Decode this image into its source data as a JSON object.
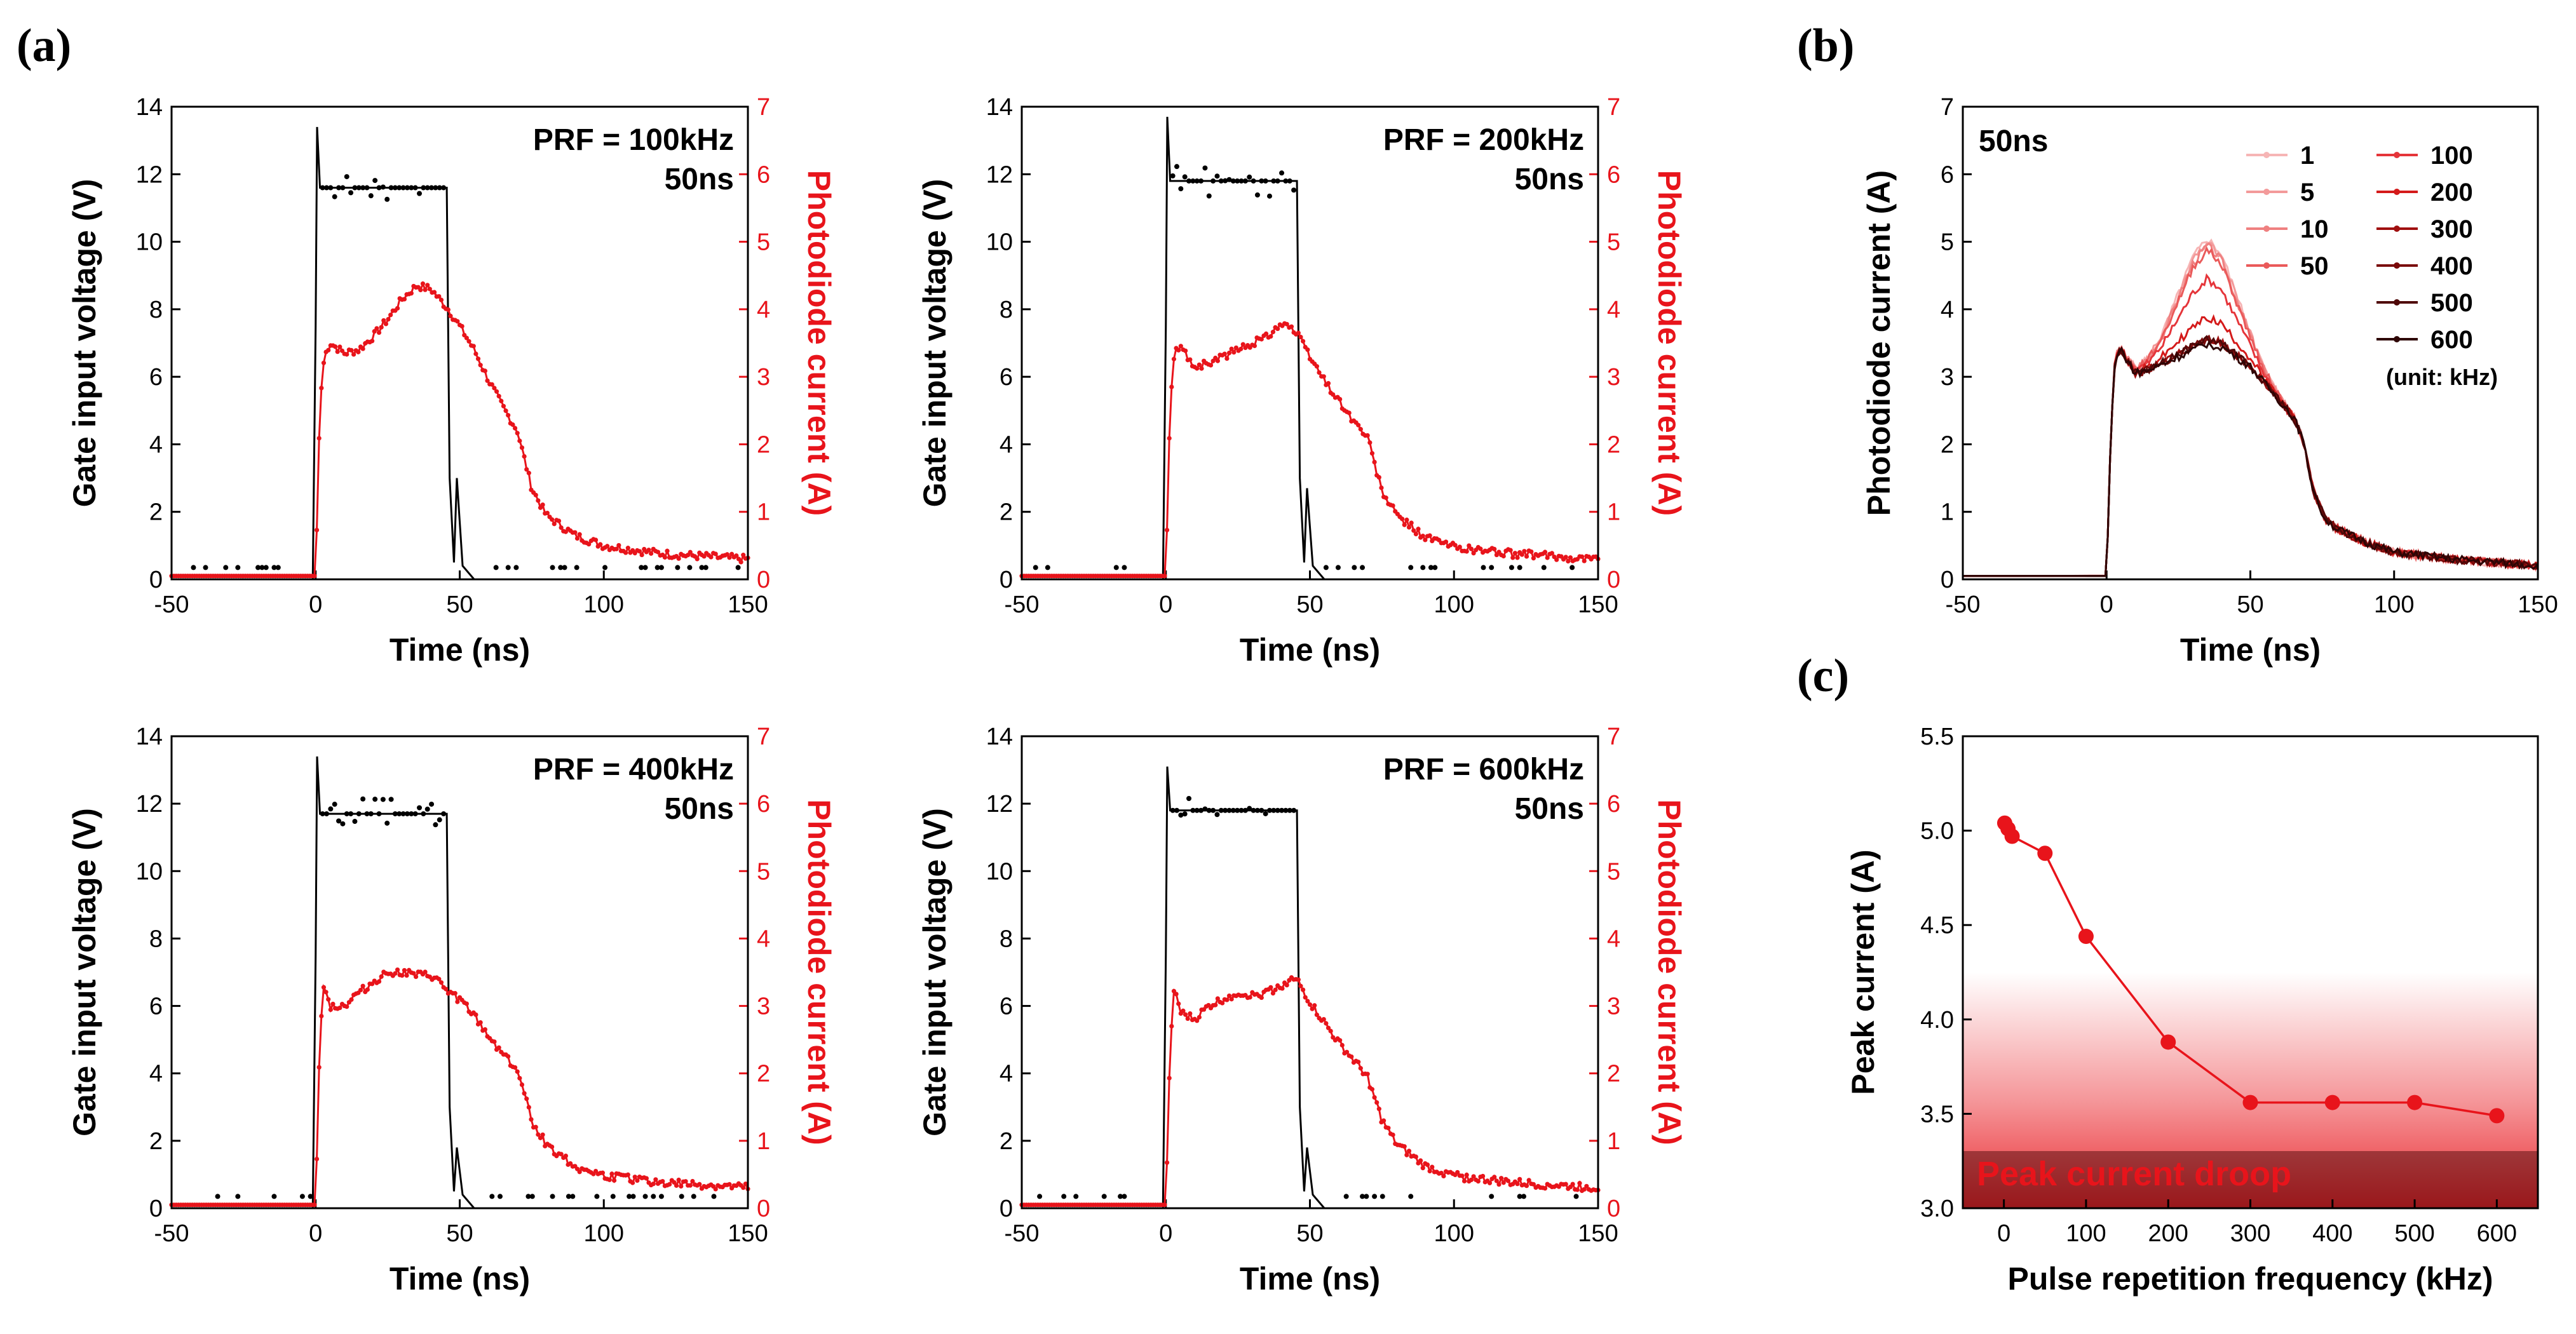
{
  "labels": {
    "a": "(a)",
    "b": "(b)",
    "c": "(c)"
  },
  "colors": {
    "voltage": "#000000",
    "current": "#e8141b",
    "droop_band": "#e8141b"
  },
  "chart_data": [
    {
      "id": "a1",
      "type": "line",
      "prf_label": "PRF = 100kHz",
      "width_label": "50ns",
      "xlabel": "Time (ns)",
      "ylabel_left": "Gate input voltage (V)",
      "ylabel_right": "Photodiode current (A)",
      "xlim": [
        -50,
        150
      ],
      "ylim_left": [
        0,
        14
      ],
      "ylim_right": [
        0,
        7
      ],
      "xticks": [
        "-50",
        "0",
        "50",
        "100",
        "150"
      ],
      "yticks_left": [
        "0",
        "2",
        "4",
        "6",
        "8",
        "10",
        "12",
        "14"
      ],
      "yticks_right": [
        "0",
        "1",
        "2",
        "3",
        "4",
        "5",
        "6",
        "7"
      ],
      "series": [
        {
          "name": "Gate input voltage",
          "axis": "left",
          "x": [
            -50,
            -1,
            0,
            0.5,
            1.5,
            45.5,
            46.5,
            48,
            49,
            51,
            55,
            150
          ],
          "y": [
            0,
            0,
            7.5,
            13.4,
            11.6,
            11.6,
            3.0,
            0.5,
            3.0,
            0.4,
            0,
            0
          ]
        },
        {
          "name": "Photodiode current",
          "axis": "right",
          "x": [
            -50,
            0,
            1.5,
            3,
            5,
            10,
            15,
            20,
            25,
            30,
            35,
            40,
            43,
            46,
            50,
            55,
            60,
            65,
            70,
            75,
            80,
            90,
            100,
            120,
            150
          ],
          "y": [
            0.05,
            0.05,
            2.6,
            3.3,
            3.5,
            3.35,
            3.4,
            3.6,
            3.85,
            4.15,
            4.35,
            4.3,
            4.15,
            4.0,
            3.75,
            3.4,
            2.95,
            2.55,
            2.2,
            1.35,
            0.95,
            0.65,
            0.5,
            0.38,
            0.3
          ]
        }
      ]
    },
    {
      "id": "a2",
      "type": "line",
      "prf_label": "PRF = 200kHz",
      "width_label": "50ns",
      "xlabel": "Time (ns)",
      "ylabel_left": "Gate input voltage (V)",
      "ylabel_right": "Photodiode current (A)",
      "xlim": [
        -50,
        150
      ],
      "ylim_left": [
        0,
        14
      ],
      "ylim_right": [
        0,
        7
      ],
      "xticks": [
        "-50",
        "0",
        "50",
        "100",
        "150"
      ],
      "yticks_left": [
        "0",
        "2",
        "4",
        "6",
        "8",
        "10",
        "12",
        "14"
      ],
      "yticks_right": [
        "0",
        "1",
        "2",
        "3",
        "4",
        "5",
        "6",
        "7"
      ],
      "series": [
        {
          "name": "Gate input voltage",
          "axis": "left",
          "x": [
            -50,
            -1,
            0,
            0.5,
            1.5,
            45.5,
            46.5,
            48,
            49,
            51,
            55,
            150
          ],
          "y": [
            0,
            0,
            7.5,
            13.7,
            11.8,
            11.8,
            3.0,
            0.5,
            2.7,
            0.4,
            0,
            0
          ]
        },
        {
          "name": "Photodiode current",
          "axis": "right",
          "x": [
            -50,
            0,
            1.5,
            3,
            5,
            10,
            15,
            20,
            25,
            30,
            35,
            40,
            43,
            46,
            50,
            55,
            60,
            65,
            70,
            75,
            80,
            90,
            100,
            120,
            150
          ],
          "y": [
            0.05,
            0.05,
            2.6,
            3.35,
            3.45,
            3.15,
            3.2,
            3.3,
            3.4,
            3.5,
            3.6,
            3.8,
            3.75,
            3.6,
            3.3,
            2.95,
            2.65,
            2.35,
            2.1,
            1.3,
            0.95,
            0.62,
            0.48,
            0.38,
            0.3
          ]
        }
      ]
    },
    {
      "id": "a3",
      "type": "line",
      "prf_label": "PRF = 400kHz",
      "width_label": "50ns",
      "xlabel": "Time (ns)",
      "ylabel_left": "Gate input voltage (V)",
      "ylabel_right": "Photodiode current (A)",
      "xlim": [
        -50,
        150
      ],
      "ylim_left": [
        0,
        14
      ],
      "ylim_right": [
        0,
        7
      ],
      "xticks": [
        "-50",
        "0",
        "50",
        "100",
        "150"
      ],
      "yticks_left": [
        "0",
        "2",
        "4",
        "6",
        "8",
        "10",
        "12",
        "14"
      ],
      "yticks_right": [
        "0",
        "1",
        "2",
        "3",
        "4",
        "5",
        "6",
        "7"
      ],
      "series": [
        {
          "name": "Gate input voltage",
          "axis": "left",
          "x": [
            -50,
            -1,
            0,
            0.5,
            1.5,
            45.5,
            46.5,
            48,
            49,
            51,
            55,
            150
          ],
          "y": [
            0,
            0,
            7.5,
            13.4,
            11.7,
            11.7,
            3.0,
            0.5,
            1.8,
            0.4,
            0,
            0
          ]
        },
        {
          "name": "Photodiode current",
          "axis": "right",
          "x": [
            -50,
            0,
            1.5,
            3,
            5,
            10,
            15,
            20,
            25,
            30,
            35,
            40,
            43,
            46,
            50,
            55,
            60,
            65,
            70,
            75,
            80,
            90,
            100,
            120,
            150
          ],
          "y": [
            0.05,
            0.05,
            2.6,
            3.35,
            3.0,
            3.0,
            3.2,
            3.35,
            3.5,
            3.5,
            3.45,
            3.45,
            3.35,
            3.2,
            3.1,
            2.85,
            2.55,
            2.3,
            2.05,
            1.3,
            0.95,
            0.62,
            0.48,
            0.38,
            0.3
          ]
        }
      ]
    },
    {
      "id": "a4",
      "type": "line",
      "prf_label": "PRF = 600kHz",
      "width_label": "50ns",
      "xlabel": "Time (ns)",
      "ylabel_left": "Gate input voltage (V)",
      "ylabel_right": "Photodiode current (A)",
      "xlim": [
        -50,
        150
      ],
      "ylim_left": [
        0,
        14
      ],
      "ylim_right": [
        0,
        7
      ],
      "xticks": [
        "-50",
        "0",
        "50",
        "100",
        "150"
      ],
      "yticks_left": [
        "0",
        "2",
        "4",
        "6",
        "8",
        "10",
        "12",
        "14"
      ],
      "yticks_right": [
        "0",
        "1",
        "2",
        "3",
        "4",
        "5",
        "6",
        "7"
      ],
      "series": [
        {
          "name": "Gate input voltage",
          "axis": "left",
          "x": [
            -50,
            -1,
            0,
            0.5,
            1.5,
            45.5,
            46.5,
            48,
            49,
            51,
            55,
            150
          ],
          "y": [
            0,
            0,
            7.5,
            13.1,
            11.8,
            11.8,
            3.0,
            0.5,
            1.8,
            0.4,
            0,
            0
          ]
        },
        {
          "name": "Photodiode current",
          "axis": "right",
          "x": [
            -50,
            0,
            1.5,
            3,
            5,
            10,
            15,
            20,
            25,
            30,
            35,
            40,
            43,
            46,
            50,
            55,
            60,
            65,
            70,
            75,
            80,
            90,
            100,
            120,
            150
          ],
          "y": [
            0.05,
            0.05,
            2.4,
            3.3,
            2.9,
            2.8,
            3.0,
            3.1,
            3.2,
            3.15,
            3.2,
            3.3,
            3.4,
            3.35,
            3.05,
            2.75,
            2.45,
            2.2,
            1.95,
            1.3,
            0.95,
            0.62,
            0.48,
            0.38,
            0.3
          ]
        }
      ]
    },
    {
      "id": "b",
      "type": "line",
      "title": "50ns",
      "xlabel": "Time (ns)",
      "ylabel": "Photodiode current (A)",
      "xlim": [
        -50,
        150
      ],
      "ylim": [
        0,
        7
      ],
      "xticks": [
        "-50",
        "0",
        "50",
        "100",
        "150"
      ],
      "yticks": [
        "0",
        "1",
        "2",
        "3",
        "4",
        "5",
        "6",
        "7"
      ],
      "legend_note": "(unit: kHz)",
      "legend_position": "top-right",
      "series": [
        {
          "name": "1",
          "color": "#f6b5b5",
          "peak": 5.05
        },
        {
          "name": "5",
          "color": "#f39a9a",
          "peak": 5.0
        },
        {
          "name": "10",
          "color": "#ef8080",
          "peak": 4.95
        },
        {
          "name": "50",
          "color": "#ea5a5a",
          "peak": 4.88
        },
        {
          "name": "100",
          "color": "#e5353a",
          "peak": 4.45
        },
        {
          "name": "200",
          "color": "#d41a1a",
          "peak": 3.88
        },
        {
          "name": "300",
          "color": "#a00f0f",
          "peak": 3.56
        },
        {
          "name": "400",
          "color": "#7a0a0a",
          "peak": 3.56
        },
        {
          "name": "500",
          "color": "#4f0808",
          "peak": 3.56
        },
        {
          "name": "600",
          "color": "#2e0505",
          "peak": 3.49
        }
      ]
    },
    {
      "id": "c",
      "type": "line",
      "xlabel": "Pulse repetition frequency (kHz)",
      "ylabel": "Peak current (A)",
      "xlim": [
        -50,
        650
      ],
      "ylim": [
        3.0,
        5.5
      ],
      "xticks": [
        "0",
        "100",
        "200",
        "300",
        "400",
        "500",
        "600"
      ],
      "yticks": [
        "3.0",
        "3.5",
        "4.0",
        "4.5",
        "5.0",
        "5.5"
      ],
      "annotation": "Peak current droop",
      "x": [
        1,
        5,
        10,
        50,
        100,
        200,
        300,
        400,
        500,
        600
      ],
      "y": [
        5.04,
        5.01,
        4.97,
        4.88,
        4.44,
        3.88,
        3.56,
        3.56,
        3.56,
        3.49
      ]
    }
  ]
}
